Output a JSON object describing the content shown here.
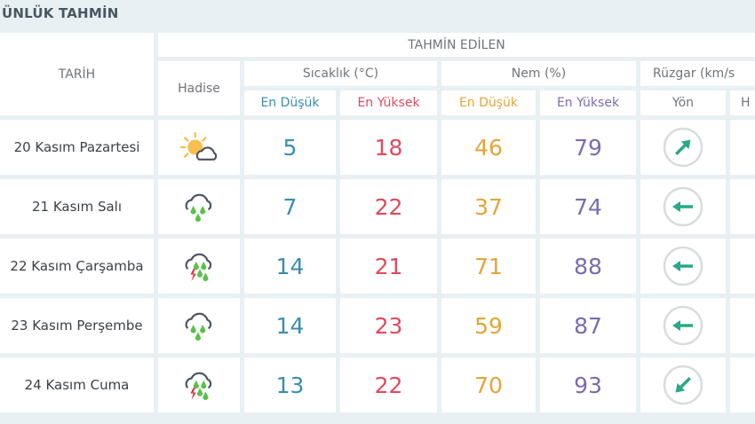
{
  "title": "ÜNLÜK TAHMİN",
  "headers": {
    "date": "TARİH",
    "forecast": "TAHMİN EDİLEN",
    "event": "Hadise",
    "temp": "Sıcaklık (°C)",
    "humidity": "Nem (%)",
    "wind": "Rüzgar (km/s",
    "min": "En Düşük",
    "max": "En Yüksek",
    "dir": "Yön",
    "speed": "H"
  },
  "colors": {
    "min_temp": "#3b8db0",
    "max_temp": "#e04a5e",
    "min_hum": "#e2a53a",
    "max_hum": "#7b6cab",
    "arrow": "#2aa887"
  },
  "rows": [
    {
      "date": "20 Kasım Pazartesi",
      "icon": "sun-cloud-icon",
      "tmin": "5",
      "tmax": "18",
      "hmin": "46",
      "hmax": "79",
      "wind_arrow": "up-right"
    },
    {
      "date": "21 Kasım Salı",
      "icon": "rain-cloud-icon",
      "tmin": "7",
      "tmax": "22",
      "hmin": "37",
      "hmax": "74",
      "wind_arrow": "left"
    },
    {
      "date": "22 Kasım Çarşamba",
      "icon": "thunder-rain-cloud-icon",
      "tmin": "14",
      "tmax": "21",
      "hmin": "71",
      "hmax": "88",
      "wind_arrow": "left"
    },
    {
      "date": "23 Kasım Perşembe",
      "icon": "rain-cloud-icon",
      "tmin": "14",
      "tmax": "23",
      "hmin": "59",
      "hmax": "87",
      "wind_arrow": "left"
    },
    {
      "date": "24 Kasım Cuma",
      "icon": "thunder-rain-cloud-icon",
      "tmin": "13",
      "tmax": "22",
      "hmin": "70",
      "hmax": "93",
      "wind_arrow": "down-left"
    }
  ]
}
